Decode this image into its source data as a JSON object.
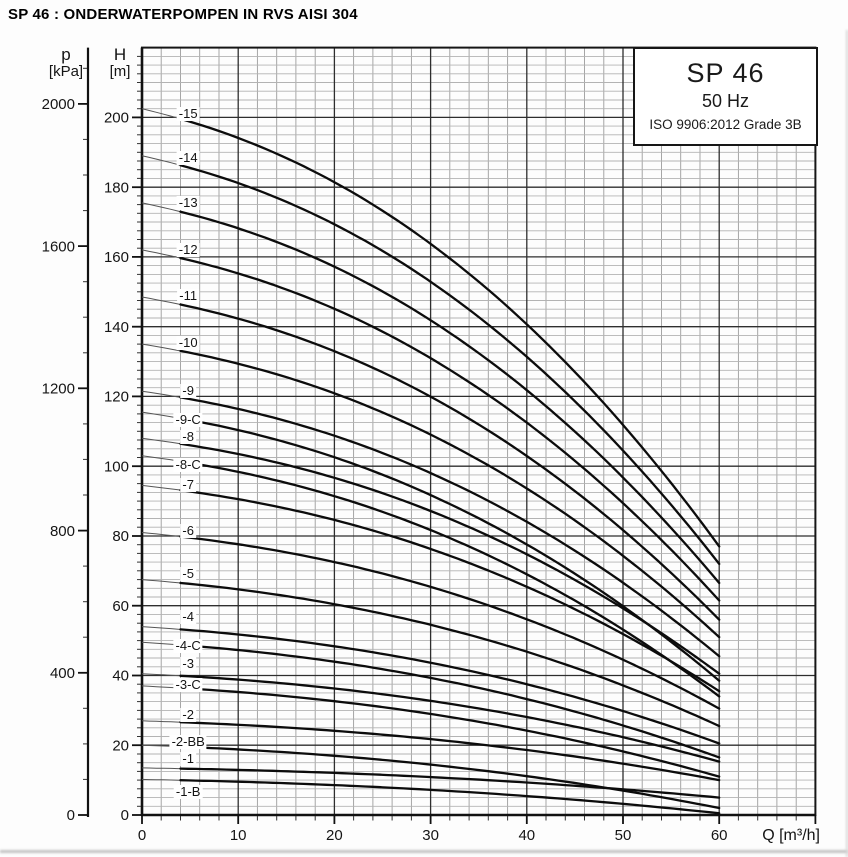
{
  "page": {
    "title": "SP 46 : ONDERWATERPOMPEN IN RVS AISI 304"
  },
  "info_box": {
    "model": "SP 46",
    "frequency": "50 Hz",
    "standard": "ISO 9906:2012 Grade 3B"
  },
  "axes": {
    "pressure": {
      "symbol": "p",
      "unit": "[kPa]",
      "major_ticks": [
        0,
        400,
        800,
        1200,
        1600,
        2000
      ],
      "minor_step": 100,
      "minor_max": 2100,
      "kpa_per_m": 9.81
    },
    "head": {
      "symbol": "H",
      "unit": "[m]",
      "major_ticks": [
        0,
        20,
        40,
        60,
        80,
        100,
        120,
        140,
        160,
        180,
        200
      ],
      "minor_step": 2.5,
      "axis_max": 220
    },
    "flow": {
      "label": "Q [m³/h]",
      "major_ticks": [
        0,
        10,
        20,
        30,
        40,
        50,
        60
      ],
      "minor_step": 2,
      "axis_max": 70
    }
  },
  "chart_data": {
    "type": "line",
    "title": "SP 46",
    "subtitle": "50 Hz",
    "standard": "ISO 9906:2012 Grade 3B",
    "xlabel": "Q [m³/h]",
    "ylabel": "H [m]",
    "ylabel_secondary": "p [kPa]",
    "xlim": [
      0,
      70
    ],
    "ylim": [
      0,
      220
    ],
    "grid": true,
    "legend_position": "inline-labels",
    "x": [
      0,
      10,
      20,
      30,
      40,
      50,
      60
    ],
    "series": [
      {
        "name": "-15",
        "H": [
          202.5,
          194.1,
          181.4,
          163.8,
          140.7,
          111.8,
          77
        ],
        "label_dy": -7
      },
      {
        "name": "-14",
        "H": [
          189,
          181.2,
          169.4,
          152.9,
          131.4,
          104.5,
          72
        ],
        "label_dy": -9
      },
      {
        "name": "-13",
        "H": [
          175.5,
          168.2,
          157.2,
          141.9,
          121.8,
          96.8,
          66.5
        ],
        "label_dy": -11
      },
      {
        "name": "-12",
        "H": [
          162,
          155.3,
          145.1,
          131,
          112.5,
          89.4,
          61.5
        ],
        "label_dy": -10
      },
      {
        "name": "-11",
        "H": [
          148.5,
          142.3,
          133,
          120,
          102.9,
          81.7,
          56
        ],
        "label_dy": -10
      },
      {
        "name": "-10",
        "H": [
          135,
          129.4,
          120.9,
          109.1,
          93.6,
          74.3,
          51
        ],
        "label_dy": -9
      },
      {
        "name": "-9",
        "H": [
          121.5,
          116.4,
          108.7,
          98,
          84.1,
          66.6,
          45.5
        ],
        "label_dy": -8
      },
      {
        "name": "-9-C",
        "H": [
          115.5,
          110.3,
          102.6,
          91.7,
          77.6,
          59.9,
          38.5
        ],
        "label_dy": 0
      },
      {
        "name": "-8",
        "H": [
          108,
          103.5,
          96.7,
          87.2,
          74.7,
          59.2,
          40.5
        ],
        "label_dy": -8
      },
      {
        "name": "-8-C",
        "H": [
          103,
          98.4,
          91.4,
          81.7,
          69,
          53.2,
          34
        ],
        "label_dy": 2
      },
      {
        "name": "-7",
        "H": [
          94.5,
          90.6,
          84.6,
          76.3,
          65.4,
          51.9,
          35.5
        ],
        "label_dy": -6
      },
      {
        "name": "-6",
        "H": [
          81,
          77.6,
          72.5,
          65.4,
          56.1,
          44.5,
          30.5
        ],
        "label_dy": -7
      },
      {
        "name": "-5",
        "H": [
          67.5,
          64.7,
          60.4,
          54.5,
          46.8,
          37.2,
          25.5
        ],
        "label_dy": -10
      },
      {
        "name": "-4",
        "H": [
          54,
          51.8,
          48.4,
          43.7,
          37.5,
          29.8,
          20.5
        ],
        "label_dy": -13
      },
      {
        "name": "-4-C",
        "H": [
          49.5,
          47.3,
          44,
          39.3,
          33.2,
          25.7,
          16.5
        ],
        "label_dy": 0
      },
      {
        "name": "-3",
        "H": [
          40.5,
          38.8,
          36.3,
          32.7,
          28.1,
          22.3,
          15.3
        ],
        "label_dy": -12
      },
      {
        "name": "-3-C",
        "H": [
          37,
          35.3,
          32.6,
          29,
          24.2,
          18.2,
          11
        ],
        "label_dy": -4
      },
      {
        "name": "-2",
        "H": [
          27,
          25.9,
          24.1,
          21.8,
          18.6,
          14.7,
          10
        ],
        "label_dy": -8
      },
      {
        "name": "-2-BB",
        "H": [
          20,
          18.8,
          17,
          14.4,
          11.1,
          7,
          2
        ],
        "label_dy": -5
      },
      {
        "name": "-1",
        "H": [
          13.5,
          12.9,
          12.1,
          10.9,
          9.3,
          7.4,
          5
        ],
        "label_dy": -10
      },
      {
        "name": "-1-B",
        "H": [
          10.2,
          9.6,
          8.6,
          7.2,
          5.4,
          3.2,
          0.5
        ],
        "label_dy": 12
      }
    ],
    "shape": {
      "a": 0.2,
      "b": 0.42,
      "e": 2.2
    },
    "curve_label_q": 4.8
  }
}
